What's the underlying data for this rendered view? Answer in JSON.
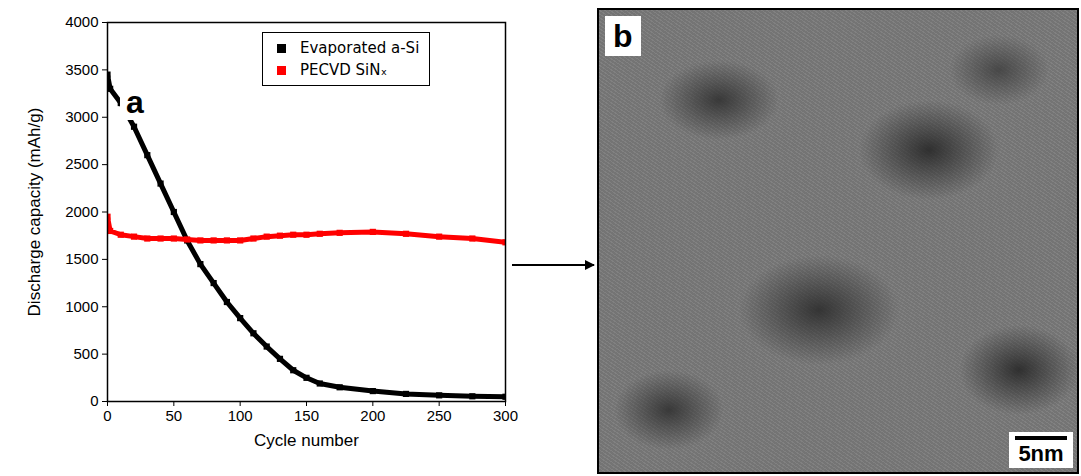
{
  "chart_data": {
    "type": "line",
    "panel_label": "a",
    "x_label": "Cycle number",
    "y_label": "Discharge capacity (mAh/g)",
    "xlim": [
      0,
      300
    ],
    "xticks": [
      0,
      50,
      100,
      150,
      200,
      250,
      300
    ],
    "ylim": [
      0,
      4000
    ],
    "yticks": [
      0,
      500,
      1000,
      1500,
      2000,
      2500,
      3000,
      3500,
      4000
    ],
    "legend": "upper right",
    "x": [
      0,
      2,
      10,
      20,
      30,
      40,
      50,
      60,
      70,
      80,
      90,
      100,
      110,
      120,
      130,
      140,
      150,
      160,
      175,
      200,
      225,
      250,
      275,
      300
    ],
    "series": [
      {
        "name": "Evaporated a-Si",
        "color": "#000000",
        "marker": "square",
        "values": [
          3450,
          3300,
          3150,
          2900,
          2600,
          2300,
          2000,
          1700,
          1450,
          1250,
          1050,
          880,
          720,
          580,
          450,
          330,
          250,
          190,
          150,
          110,
          80,
          65,
          55,
          50
        ]
      },
      {
        "name": "PECVD SiNₓ",
        "color": "#ff0000",
        "marker": "square",
        "values": [
          1950,
          1800,
          1760,
          1740,
          1720,
          1720,
          1720,
          1710,
          1700,
          1700,
          1700,
          1700,
          1720,
          1740,
          1750,
          1760,
          1760,
          1770,
          1780,
          1790,
          1770,
          1740,
          1720,
          1680
        ]
      }
    ]
  },
  "image_panel": {
    "panel_label": "b",
    "scale_bar": "5nm"
  }
}
